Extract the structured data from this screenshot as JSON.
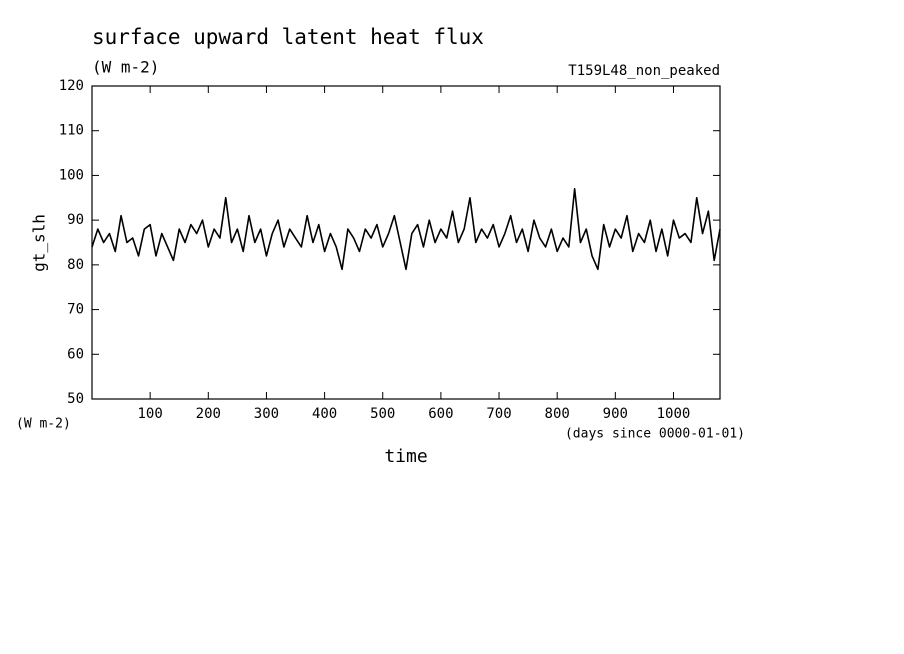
{
  "chart_data": {
    "type": "line",
    "title": "surface upward latent heat flux",
    "subtitle": "(W m-2)",
    "annotation": "T159L48_non_peaked",
    "y_label": "gt_slh",
    "y_unit": "(W m-2)",
    "x_label": "time",
    "x_unit": "(days since 0000-01-01)",
    "xlim": [
      0,
      1080
    ],
    "xticks": [
      100,
      200,
      300,
      400,
      500,
      600,
      700,
      800,
      900,
      1000
    ],
    "ylim": [
      50,
      120
    ],
    "yticks": [
      50,
      60,
      70,
      80,
      90,
      100,
      110,
      120
    ],
    "x": [
      0,
      10,
      20,
      30,
      40,
      50,
      60,
      70,
      80,
      90,
      100,
      110,
      120,
      130,
      140,
      150,
      160,
      170,
      180,
      190,
      200,
      210,
      220,
      230,
      240,
      250,
      260,
      270,
      280,
      290,
      300,
      310,
      320,
      330,
      340,
      350,
      360,
      370,
      380,
      390,
      400,
      410,
      420,
      430,
      440,
      450,
      460,
      470,
      480,
      490,
      500,
      510,
      520,
      530,
      540,
      550,
      560,
      570,
      580,
      590,
      600,
      610,
      620,
      630,
      640,
      650,
      660,
      670,
      680,
      690,
      700,
      710,
      720,
      730,
      740,
      750,
      760,
      770,
      780,
      790,
      800,
      810,
      820,
      830,
      840,
      850,
      860,
      870,
      880,
      890,
      900,
      910,
      920,
      930,
      940,
      950,
      960,
      970,
      980,
      990,
      1000,
      1010,
      1020,
      1030,
      1040,
      1050,
      1060,
      1070,
      1080
    ],
    "series": [
      {
        "color": "#000000",
        "values": [
          84,
          88,
          85,
          87,
          83,
          91,
          85,
          86,
          82,
          88,
          89,
          82,
          87,
          84,
          81,
          88,
          85,
          89,
          87,
          90,
          84,
          88,
          86,
          95,
          85,
          88,
          83,
          91,
          85,
          88,
          82,
          87,
          90,
          84,
          88,
          86,
          84,
          91,
          85,
          89,
          83,
          87,
          84,
          79,
          88,
          86,
          83,
          88,
          86,
          89,
          84,
          87,
          91,
          85,
          79,
          87,
          89,
          84,
          90,
          85,
          88,
          86,
          92,
          85,
          88,
          95,
          85,
          88,
          86,
          89,
          84,
          87,
          91,
          85,
          88,
          83,
          90,
          86,
          84,
          88,
          83,
          86,
          84,
          97,
          85,
          88,
          82,
          79,
          89,
          84,
          88,
          86,
          91,
          83,
          87,
          85,
          90,
          83,
          88,
          82,
          90,
          86,
          87,
          85,
          95,
          87,
          92,
          81,
          88
        ]
      }
    ]
  }
}
